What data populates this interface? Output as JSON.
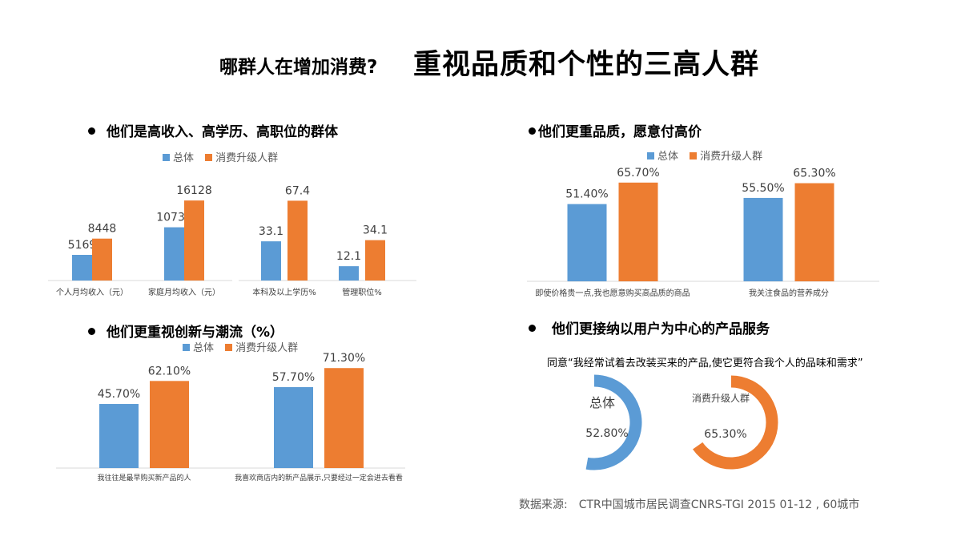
{
  "header": {
    "title_prefix": "哪群人在增加消费?",
    "title_main": "重视品质和个性的三高人群"
  },
  "legend": {
    "a": "总体",
    "b": "消费升级人群"
  },
  "colors": {
    "a": "#5B9BD5",
    "b": "#ED7D31",
    "axis": "#D9D9D9",
    "ring_bg": "#FFFFFF"
  },
  "sections": {
    "s1": "他们是高收入、高学历、高职位的群体",
    "s2": "他们更重品质，愿意付高价",
    "s3": "他们更重视创新与潮流（%）",
    "s4": "他们更接纳以用户为中心的产品服务"
  },
  "quote": "同意“我经常试着去改装买来的产品,使它更符合我个人的品味和需求”",
  "source": {
    "label": "数据来源:",
    "text": "CTR中国城市居民调查CNRS-TGI  2015 01-12 , 60城市"
  },
  "chart_data": [
    {
      "id": "c1",
      "type": "bar",
      "categories": [
        "个人月均收入（元）",
        "家庭月均收入（元）"
      ],
      "series": [
        {
          "name": "总体",
          "values": [
            5169,
            10732
          ],
          "labels": [
            "5169",
            "10732"
          ]
        },
        {
          "name": "消费升级人群",
          "values": [
            8448,
            16128
          ],
          "labels": [
            "8448",
            "16128"
          ]
        }
      ],
      "ylim": [
        0,
        21000
      ]
    },
    {
      "id": "c2",
      "type": "bar",
      "categories": [
        "本科及以上学历%",
        "管理职位%"
      ],
      "series": [
        {
          "name": "总体",
          "values": [
            33.1,
            12.1
          ],
          "labels": [
            "33.1",
            "12.1"
          ]
        },
        {
          "name": "消费升级人群",
          "values": [
            67.4,
            34.1
          ],
          "labels": [
            "67.4",
            "34.1"
          ]
        }
      ],
      "ylim": [
        0,
        88
      ]
    },
    {
      "id": "c3",
      "type": "bar",
      "categories": [
        "即使价格贵一点,我也愿意购买高品质的商品",
        "我关注食品的营养成分"
      ],
      "series": [
        {
          "name": "总体",
          "values": [
            51.4,
            55.5
          ],
          "labels": [
            "51.40%",
            "55.50%"
          ]
        },
        {
          "name": "消费升级人群",
          "values": [
            65.7,
            65.3
          ],
          "labels": [
            "65.70%",
            "65.30%"
          ]
        }
      ],
      "ylim": [
        0,
        80
      ]
    },
    {
      "id": "c4",
      "type": "bar",
      "categories": [
        "我往往是最早购买新产品的人",
        "我喜欢商店内的新产品展示,只要经过一定会进去看看"
      ],
      "series": [
        {
          "name": "总体",
          "values": [
            45.7,
            57.7
          ],
          "labels": [
            "45.70%",
            "57.70%"
          ]
        },
        {
          "name": "消费升级人群",
          "values": [
            62.1,
            71.3
          ],
          "labels": [
            "62.10%",
            "71.30%"
          ]
        }
      ],
      "ylim": [
        0,
        80
      ]
    },
    {
      "id": "c5",
      "type": "pie",
      "rings": [
        {
          "name": "总体",
          "value": 52.8,
          "label": "52.80%"
        },
        {
          "name": "消费升级人群",
          "value": 65.3,
          "label": "65.30%"
        }
      ]
    }
  ]
}
